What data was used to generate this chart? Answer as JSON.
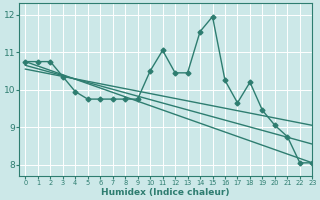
{
  "xlabel": "Humidex (Indice chaleur)",
  "xlim": [
    -0.5,
    23
  ],
  "ylim": [
    7.7,
    12.3
  ],
  "xticks": [
    0,
    1,
    2,
    3,
    4,
    5,
    6,
    7,
    8,
    9,
    10,
    11,
    12,
    13,
    14,
    15,
    16,
    17,
    18,
    19,
    20,
    21,
    22,
    23
  ],
  "yticks": [
    8,
    9,
    10,
    11,
    12
  ],
  "bg_color": "#cce8e8",
  "grid_color": "#b0d8d8",
  "line_color": "#2e7d70",
  "line_width": 1.0,
  "marker": "D",
  "marker_size": 2.5,
  "series1_x": [
    0,
    1,
    2,
    3,
    4,
    5,
    6,
    7,
    8,
    9,
    10,
    11,
    12,
    13,
    14,
    15,
    16,
    17,
    18,
    19,
    20,
    21,
    22,
    23
  ],
  "series1_y": [
    10.75,
    10.75,
    10.75,
    10.35,
    9.95,
    9.75,
    9.75,
    9.75,
    9.75,
    9.75,
    10.5,
    11.05,
    10.45,
    10.45,
    11.55,
    11.95,
    10.25,
    9.65,
    10.2,
    9.45,
    9.05,
    8.75,
    8.05,
    8.05
  ],
  "trend1_x": [
    0,
    23
  ],
  "trend1_y": [
    10.75,
    8.05
  ],
  "trend2_x": [
    0,
    23
  ],
  "trend2_y": [
    10.55,
    9.05
  ],
  "trend3_x": [
    0,
    23
  ],
  "trend3_y": [
    10.65,
    8.55
  ]
}
